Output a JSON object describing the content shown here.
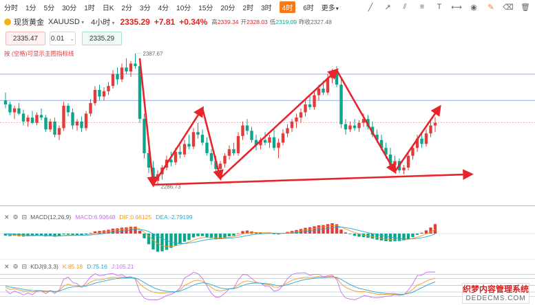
{
  "toolbar": {
    "timeframes": [
      "分时",
      "1分",
      "5分",
      "30分",
      "1时",
      "日K",
      "2分",
      "3分",
      "4分",
      "10分",
      "15分",
      "20分",
      "2时",
      "3时",
      "4时",
      "6时",
      "更多"
    ],
    "active_timeframe": "4时",
    "tools": [
      "line-tool-icon",
      "ray-tool-icon",
      "channel-tool-icon",
      "fib-tool-icon",
      "text-tool-icon",
      "measure-tool-icon",
      "eye-icon",
      "draw-icon",
      "eraser-icon",
      "clear-icon"
    ]
  },
  "quote": {
    "name": "现货黄金",
    "symbol": "XAUUSD",
    "period": "4小时",
    "price": "2335.29",
    "change": "+7.81",
    "change_pct": "+0.34%",
    "high_label": "高",
    "high": "2339.34",
    "open_label": "开",
    "open": "2328.03",
    "low_label": "低",
    "low": "2319.09",
    "prev_close_label": "昨收",
    "prev_close": "2327.48"
  },
  "trade": {
    "bid": "2335.47",
    "lot": "0.01",
    "ask": "2335.29"
  },
  "hint": "按 (空格)可显示主图指标线",
  "macd_header": {
    "name": "MACD(12,26,9)",
    "macd": "MACD:6.90648",
    "dif": "DIF:0.66125",
    "dea": "DEA:-2.79199"
  },
  "kdj_header": {
    "name": "KDJ(9,3,3)",
    "k": "K:85.18",
    "d": "D:75.16",
    "j": "J:105.21"
  },
  "watermark": {
    "line1": "织梦内容管理系统",
    "line2": "DEDECMS.COM"
  },
  "colors": {
    "up": "#e23b3b",
    "down": "#0aa68c",
    "arrow": "#e8232a",
    "hline": "#8fa9e6"
  },
  "chart_data": {
    "type": "candlestick",
    "price_labels": {
      "high": "2387.67",
      "low": "2286.73"
    },
    "candles": [
      [
        2352,
        2358,
        2346,
        2349
      ],
      [
        2349,
        2351,
        2341,
        2343
      ],
      [
        2343,
        2348,
        2338,
        2346
      ],
      [
        2346,
        2350,
        2341,
        2342
      ],
      [
        2342,
        2345,
        2333,
        2336
      ],
      [
        2336,
        2341,
        2332,
        2339
      ],
      [
        2339,
        2344,
        2334,
        2335
      ],
      [
        2335,
        2343,
        2333,
        2341
      ],
      [
        2341,
        2346,
        2337,
        2339
      ],
      [
        2339,
        2341,
        2328,
        2330
      ],
      [
        2330,
        2338,
        2328,
        2336
      ],
      [
        2336,
        2339,
        2324,
        2326
      ],
      [
        2326,
        2333,
        2322,
        2331
      ],
      [
        2331,
        2351,
        2329,
        2348
      ],
      [
        2348,
        2350,
        2340,
        2343
      ],
      [
        2343,
        2346,
        2330,
        2333
      ],
      [
        2333,
        2338,
        2329,
        2336
      ],
      [
        2336,
        2340,
        2328,
        2331
      ],
      [
        2331,
        2344,
        2329,
        2342
      ],
      [
        2342,
        2353,
        2340,
        2350
      ],
      [
        2350,
        2363,
        2348,
        2360
      ],
      [
        2360,
        2364,
        2352,
        2355
      ],
      [
        2355,
        2362,
        2352,
        2359
      ],
      [
        2359,
        2366,
        2356,
        2363
      ],
      [
        2363,
        2375,
        2361,
        2372
      ],
      [
        2372,
        2377,
        2364,
        2368
      ],
      [
        2368,
        2380,
        2366,
        2377
      ],
      [
        2377,
        2384,
        2372,
        2374
      ],
      [
        2374,
        2382,
        2370,
        2380
      ],
      [
        2380,
        2387.67,
        2376,
        2378
      ],
      [
        2378,
        2381,
        2335,
        2338
      ],
      [
        2338,
        2342,
        2308,
        2312
      ],
      [
        2312,
        2318,
        2297,
        2301
      ],
      [
        2301,
        2306,
        2286.73,
        2291
      ],
      [
        2291,
        2299,
        2288,
        2296
      ],
      [
        2296,
        2303,
        2292,
        2301
      ],
      [
        2301,
        2310,
        2299,
        2307
      ],
      [
        2307,
        2313,
        2302,
        2305
      ],
      [
        2305,
        2316,
        2303,
        2313
      ],
      [
        2313,
        2318,
        2308,
        2311
      ],
      [
        2311,
        2322,
        2309,
        2319
      ],
      [
        2319,
        2326,
        2315,
        2317
      ],
      [
        2317,
        2331,
        2315,
        2328
      ],
      [
        2328,
        2335,
        2323,
        2326
      ],
      [
        2326,
        2330,
        2318,
        2320
      ],
      [
        2320,
        2324,
        2310,
        2312
      ],
      [
        2312,
        2315,
        2303,
        2306
      ],
      [
        2306,
        2310,
        2298,
        2300
      ],
      [
        2300,
        2306,
        2297,
        2304
      ],
      [
        2304,
        2312,
        2301,
        2310
      ],
      [
        2310,
        2318,
        2307,
        2315
      ],
      [
        2315,
        2320,
        2310,
        2312
      ],
      [
        2312,
        2328,
        2310,
        2325
      ],
      [
        2325,
        2336,
        2322,
        2333
      ],
      [
        2333,
        2338,
        2326,
        2329
      ],
      [
        2329,
        2332,
        2320,
        2322
      ],
      [
        2322,
        2326,
        2314,
        2318
      ],
      [
        2318,
        2324,
        2315,
        2322
      ],
      [
        2322,
        2328,
        2318,
        2320
      ],
      [
        2320,
        2326,
        2316,
        2324
      ],
      [
        2324,
        2330,
        2314,
        2316
      ],
      [
        2316,
        2323,
        2308,
        2320
      ],
      [
        2320,
        2330,
        2318,
        2327
      ],
      [
        2327,
        2334,
        2324,
        2331
      ],
      [
        2331,
        2338,
        2328,
        2336
      ],
      [
        2336,
        2342,
        2331,
        2339
      ],
      [
        2339,
        2346,
        2335,
        2343
      ],
      [
        2343,
        2352,
        2340,
        2349
      ],
      [
        2349,
        2356,
        2345,
        2347
      ],
      [
        2347,
        2359,
        2345,
        2356
      ],
      [
        2356,
        2364,
        2352,
        2361
      ],
      [
        2361,
        2367,
        2356,
        2358
      ],
      [
        2358,
        2372,
        2356,
        2369
      ],
      [
        2369,
        2376,
        2365,
        2374
      ],
      [
        2374,
        2378,
        2362,
        2364
      ],
      [
        2364,
        2368,
        2331,
        2334
      ],
      [
        2334,
        2338,
        2326,
        2330
      ],
      [
        2330,
        2336,
        2328,
        2333
      ],
      [
        2333,
        2338,
        2329,
        2331
      ],
      [
        2331,
        2337,
        2328,
        2335
      ],
      [
        2335,
        2342,
        2332,
        2338
      ],
      [
        2338,
        2341,
        2330,
        2332
      ],
      [
        2332,
        2336,
        2324,
        2326
      ],
      [
        2326,
        2330,
        2320,
        2322
      ],
      [
        2322,
        2326,
        2314,
        2316
      ],
      [
        2316,
        2320,
        2308,
        2311
      ],
      [
        2311,
        2316,
        2300,
        2303
      ],
      [
        2303,
        2310,
        2300,
        2306
      ],
      [
        2306,
        2308,
        2297,
        2299
      ],
      [
        2299,
        2303,
        2296,
        2301
      ],
      [
        2301,
        2312,
        2299,
        2310
      ],
      [
        2310,
        2318,
        2307,
        2316
      ],
      [
        2316,
        2326,
        2313,
        2323
      ],
      [
        2323,
        2328,
        2316,
        2319
      ],
      [
        2319,
        2330,
        2317,
        2327
      ],
      [
        2327,
        2336,
        2324,
        2333
      ],
      [
        2333,
        2339.34,
        2328,
        2335
      ]
    ],
    "horizontal_lines": [
      2372,
      2352
    ],
    "dashed_line": 2335.29,
    "arrows": [
      {
        "from": [
          30,
          2384
        ],
        "to": [
          33,
          2288
        ]
      },
      {
        "from": [
          33,
          2288
        ],
        "to": [
          44,
          2346
        ]
      },
      {
        "from": [
          44,
          2346
        ],
        "to": [
          48,
          2293
        ]
      },
      {
        "from": [
          48,
          2293
        ],
        "to": [
          74,
          2375
        ]
      },
      {
        "from": [
          74,
          2375
        ],
        "to": [
          87,
          2298
        ]
      },
      {
        "from": [
          87,
          2298
        ],
        "to": [
          97,
          2347
        ]
      },
      {
        "from": [
          33,
          2288
        ],
        "to": [
          104,
          2296
        ]
      }
    ],
    "macd": [
      -1.5,
      -1.8,
      -1.6,
      -1.9,
      -2.2,
      -2.0,
      -1.8,
      -1.5,
      -1.7,
      -2.1,
      -1.9,
      -2.3,
      -2.0,
      -0.6,
      -0.8,
      -1.4,
      -1.2,
      -1.5,
      -0.6,
      0.4,
      1.6,
      1.9,
      2.3,
      2.8,
      3.6,
      3.8,
      4.3,
      4.5,
      4.9,
      5.0,
      2.1,
      -3.4,
      -7.8,
      -11.6,
      -13.2,
      -12.9,
      -11.8,
      -10.4,
      -8.9,
      -7.6,
      -5.9,
      -4.7,
      -2.8,
      -1.9,
      -1.8,
      -2.6,
      -3.4,
      -4.2,
      -4.0,
      -3.1,
      -2.0,
      -1.6,
      0.2,
      1.8,
      2.2,
      1.6,
      0.8,
      0.6,
      0.4,
      0.6,
      -0.2,
      -0.6,
      0.4,
      1.2,
      1.9,
      2.6,
      3.3,
      4.2,
      4.6,
      5.3,
      6.0,
      6.2,
      6.9,
      7.5,
      6.8,
      2.9,
      0.8,
      -0.4,
      -1.6,
      -2.3,
      -2.6,
      -3.1,
      -3.7,
      -4.4,
      -5.0,
      -5.5,
      -5.8,
      -5.6,
      -5.5,
      -5.0,
      -3.8,
      -2.6,
      -0.9,
      0.6,
      2.3,
      4.4,
      6.9
    ],
    "kdj_levels": [
      100,
      80,
      50,
      20,
      0
    ]
  }
}
